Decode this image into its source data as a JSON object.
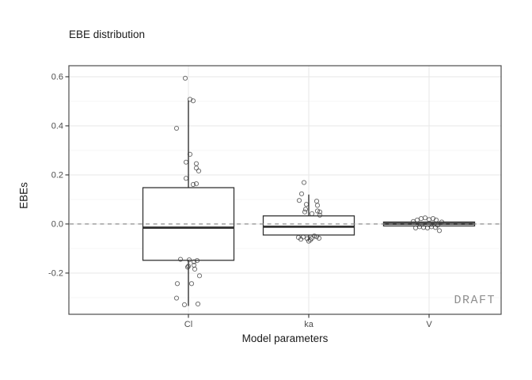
{
  "chart_data": {
    "type": "boxplot",
    "title": "EBE distribution",
    "xlabel": "Model parameters",
    "ylabel": "EBEs",
    "watermark": "DRAFT",
    "categories": [
      "Cl",
      "ka",
      "V"
    ],
    "ylim": [
      -0.368,
      0.645
    ],
    "y_major_ticks": [
      0.6,
      0.4,
      0.2,
      0.0,
      -0.2
    ],
    "y_tick_labels": [
      "0.6",
      "0.4",
      "0.2",
      "0.0",
      "-0.2"
    ],
    "y_minor_gridlines": [
      0.5,
      0.3,
      0.1,
      -0.1,
      -0.3
    ],
    "grid": "on",
    "legend_position": "none",
    "reference_line": {
      "y": 0.0,
      "style": "dashed"
    },
    "boxes": [
      {
        "category": "Cl",
        "lower_whisker": -0.334,
        "q1": -0.148,
        "median": -0.015,
        "q3": 0.148,
        "upper_whisker": 0.503
      },
      {
        "category": "ka",
        "lower_whisker": -0.066,
        "q1": -0.045,
        "median": -0.011,
        "q3": 0.033,
        "upper_whisker": 0.12
      },
      {
        "category": "V",
        "lower_whisker": -0.012,
        "q1": -0.008,
        "median": 0.001,
        "q3": 0.008,
        "upper_whisker": 0.012
      }
    ],
    "points": {
      "Cl": [
        [
          -4,
          0.594
        ],
        [
          2,
          0.508
        ],
        [
          6,
          0.502
        ],
        [
          -15,
          0.39
        ],
        [
          2,
          0.284
        ],
        [
          -3,
          0.252
        ],
        [
          10,
          0.246
        ],
        [
          10,
          0.228
        ],
        [
          13,
          0.216
        ],
        [
          -3,
          0.186
        ],
        [
          10,
          0.164
        ],
        [
          6,
          0.161
        ],
        [
          -10,
          -0.144
        ],
        [
          1,
          -0.146
        ],
        [
          11,
          -0.149
        ],
        [
          7,
          -0.154
        ],
        [
          7,
          -0.168
        ],
        [
          0,
          -0.172
        ],
        [
          -1,
          -0.176
        ],
        [
          8,
          -0.184
        ],
        [
          14,
          -0.211
        ],
        [
          -14,
          -0.243
        ],
        [
          4,
          -0.243
        ],
        [
          -15,
          -0.302
        ],
        [
          12,
          -0.326
        ],
        [
          -5,
          -0.329
        ]
      ],
      "ka": [
        [
          -6,
          0.169
        ],
        [
          -9,
          0.123
        ],
        [
          -12,
          0.096
        ],
        [
          10,
          0.093
        ],
        [
          -3,
          0.08
        ],
        [
          11,
          0.076
        ],
        [
          -4,
          0.06
        ],
        [
          11,
          0.053
        ],
        [
          -5,
          0.049
        ],
        [
          14,
          0.049
        ],
        [
          4,
          0.042
        ],
        [
          14,
          0.036
        ],
        [
          -13,
          -0.055
        ],
        [
          -10,
          -0.062
        ],
        [
          -7,
          -0.053
        ],
        [
          -2,
          -0.06
        ],
        [
          2,
          -0.065
        ],
        [
          4,
          -0.058
        ],
        [
          7,
          -0.049
        ],
        [
          10,
          -0.052
        ],
        [
          13,
          -0.058
        ],
        [
          0,
          -0.07
        ]
      ],
      "V": [
        [
          -15,
          0.016
        ],
        [
          -10,
          0.022
        ],
        [
          -5,
          0.025
        ],
        [
          0,
          0.018
        ],
        [
          5,
          0.022
        ],
        [
          9,
          0.016
        ],
        [
          -12,
          -0.011
        ],
        [
          -17,
          -0.016
        ],
        [
          -7,
          -0.014
        ],
        [
          -2,
          -0.016
        ],
        [
          3,
          -0.011
        ],
        [
          8,
          -0.014
        ],
        [
          11,
          -0.005
        ],
        [
          13,
          -0.027
        ],
        [
          -20,
          0.01
        ],
        [
          16,
          0.008
        ]
      ]
    },
    "colors": {
      "background": "#ffffff",
      "panel_border": "#4d4d4d",
      "grid_major": "#e9e9e9",
      "grid_minor": "#f4f4f4",
      "box_stroke": "#333333",
      "box_fill": "#ffffff",
      "median_stroke": "#333333",
      "point_stroke": "#3c3c3c",
      "reference_dash": "#808080",
      "axis_tick": "#333333",
      "axis_text": "#4d4d4d",
      "title_text": "#1a1a1a",
      "watermark_text": "#8f8f8f"
    }
  }
}
